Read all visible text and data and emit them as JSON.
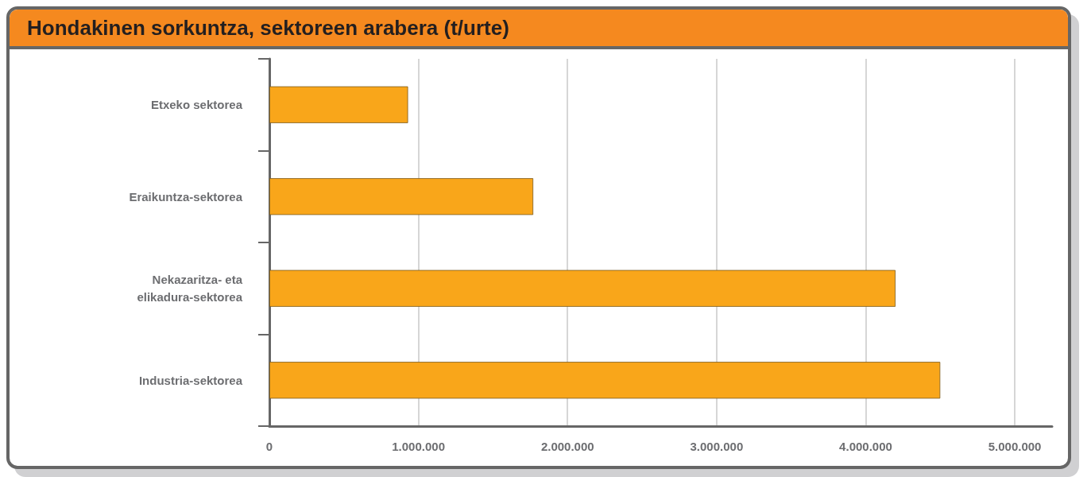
{
  "chart_data": {
    "type": "bar",
    "orientation": "horizontal",
    "title": "Hondakinen sorkuntza, sektoreen arabera (t/urte)",
    "categories": [
      "Etxeko sektorea",
      "Eraikuntza-sektorea",
      "Nekazaritza- eta\nelikadura-sektorea",
      "Industria-sektorea"
    ],
    "values": [
      930000,
      1770000,
      4200000,
      4500000
    ],
    "color": "#f9a61a",
    "xlim": [
      0,
      5250000
    ],
    "xticks": [
      {
        "value": 0,
        "label": "0"
      },
      {
        "value": 1000000,
        "label": "1.000.000"
      },
      {
        "value": 2000000,
        "label": "2.000.000"
      },
      {
        "value": 3000000,
        "label": "3.000.000"
      },
      {
        "value": 4000000,
        "label": "4.000.000"
      },
      {
        "value": 5000000,
        "label": "5.000.000"
      }
    ],
    "grid": "x"
  }
}
